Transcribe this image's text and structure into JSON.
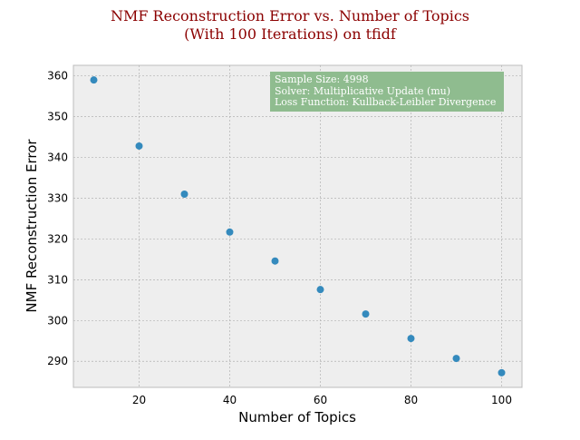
{
  "chart_data": {
    "type": "scatter",
    "title_line1": "NMF Reconstruction Error vs. Number of Topics",
    "title_line2": "(With 100 Iterations) on tfidf",
    "xlabel": "Number of Topics",
    "ylabel": "NMF Reconstruction Error",
    "x": [
      10,
      20,
      30,
      40,
      50,
      60,
      70,
      80,
      90,
      100
    ],
    "y": [
      359.0,
      342.8,
      331.0,
      321.7,
      314.6,
      307.6,
      301.6,
      295.6,
      290.7,
      287.2
    ],
    "xlim": [
      5.5,
      104.5
    ],
    "ylim": [
      283.6,
      362.6
    ],
    "xticks": [
      20,
      40,
      60,
      80,
      100
    ],
    "yticks": [
      290,
      300,
      310,
      320,
      330,
      340,
      350,
      360
    ],
    "grid": true,
    "annotation": {
      "lines": [
        "Sample Size: 4998",
        "Solver: Multiplicative Update (mu)",
        "Loss Function: Kullback-Leibler Divergence"
      ],
      "placement": "top-right"
    },
    "colors": {
      "point": "#348abd",
      "plot_background": "#eeeeee",
      "grid": "#b2b2b2",
      "title": "#8b0000",
      "annotation_box": "#8fbc8f",
      "annotation_text": "#ffffff",
      "spine": "#bcbcbc"
    }
  }
}
